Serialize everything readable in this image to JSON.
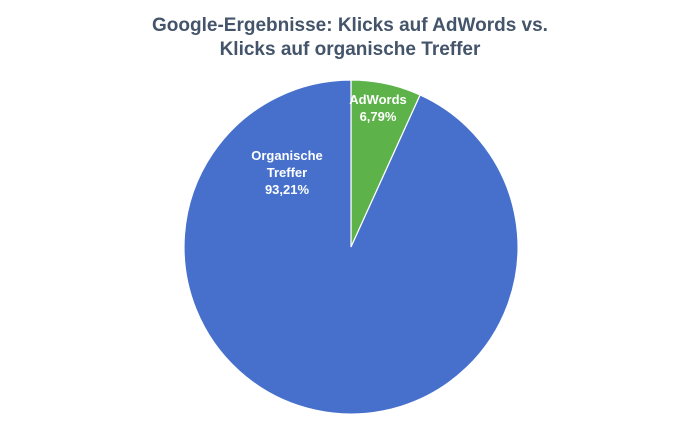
{
  "chart_data": {
    "type": "pie",
    "title_lines": [
      "Google-Ergebnisse: Klicks auf AdWords vs.",
      "Klicks auf organische Treffer"
    ],
    "slices": [
      {
        "label_lines": [
          "AdWords"
        ],
        "value": 6.79,
        "value_label": "6,79%",
        "color": "#5db349"
      },
      {
        "label_lines": [
          "Organische",
          "Treffer"
        ],
        "value": 93.21,
        "value_label": "93,21%",
        "color": "#4670cc"
      }
    ]
  }
}
